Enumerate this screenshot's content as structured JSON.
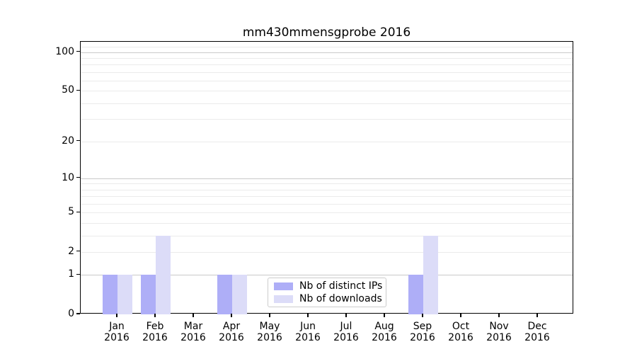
{
  "title": "mm430mmensgprobe 2016",
  "chart_data": {
    "type": "bar",
    "title": "mm430mmensgprobe 2016",
    "categories": [
      "Jan",
      "Feb",
      "Mar",
      "Apr",
      "May",
      "Jun",
      "Jul",
      "Aug",
      "Sep",
      "Oct",
      "Nov",
      "Dec"
    ],
    "category_year": "2016",
    "series": [
      {
        "name": "Nb of distinct IPs",
        "color": "#aeaef7",
        "values": [
          1,
          1,
          0,
          1,
          0,
          0,
          0,
          0,
          1,
          0,
          0,
          0
        ]
      },
      {
        "name": "Nb of downloads",
        "color": "#dcdcf8",
        "values": [
          1,
          3,
          0,
          1,
          0,
          0,
          0,
          0,
          3,
          0,
          0,
          0
        ]
      }
    ],
    "xlabel": "",
    "ylabel": "",
    "yticks": [
      0,
      1,
      2,
      5,
      10,
      20,
      50,
      100
    ],
    "ylim": [
      0,
      120
    ],
    "yscale": "log1p",
    "grid": "horizontal major+minor",
    "legend_position": "lower center"
  }
}
